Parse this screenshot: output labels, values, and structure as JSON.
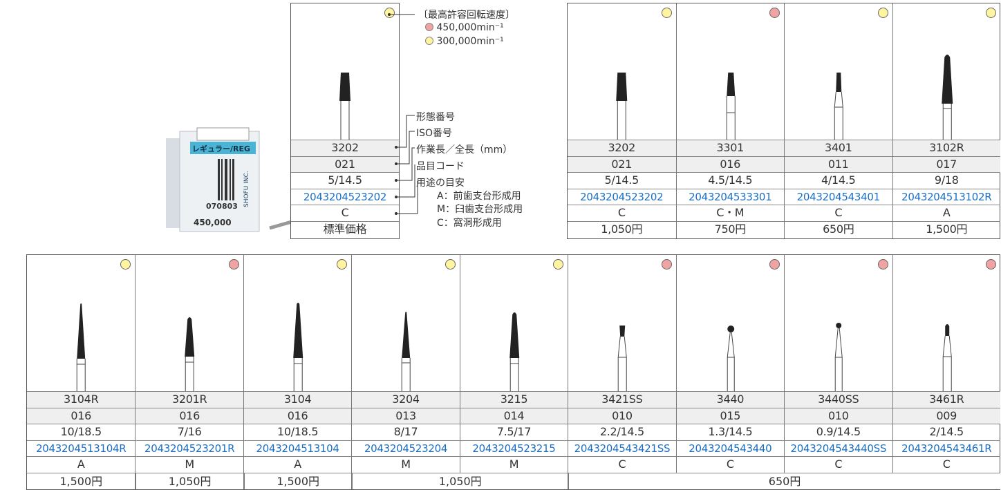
{
  "colors": {
    "speed_450k": "#f0a3a3",
    "speed_300k": "#fff4a0",
    "code_text": "#1a6fc4",
    "row_gray": "#efefef"
  },
  "product_box": {
    "label": "レギュラー/REG",
    "lot": "070803",
    "speed": "450,000",
    "brand": "SHOFU INC."
  },
  "legend": {
    "speed_title": "〔最高許容回転速度〕",
    "speed_450k": "450,000min⁻¹",
    "speed_300k": "300,000min⁻¹",
    "sample": {
      "speed": "300k",
      "shape_no": "3202",
      "iso": "021",
      "length": "5/14.5",
      "code": "2043204523202",
      "usage": "C",
      "price_label": "標準価格"
    },
    "labels": {
      "shape_no": "形態番号",
      "iso": "ISO番号",
      "length": "作業長／全長（mm）",
      "code": "品目コード",
      "usage": "用途の目安"
    },
    "usage_keys": [
      "A：前歯支台形成用",
      "M：臼歯支台形成用",
      "C：窩洞形成用"
    ]
  },
  "top_table": {
    "items": [
      {
        "speed": "300k",
        "shape_no": "3202",
        "iso": "021",
        "length": "5/14.5",
        "code": "2043204523202",
        "usage": "C",
        "price": "1,050円"
      },
      {
        "speed": "450k",
        "shape_no": "3301",
        "iso": "016",
        "length": "4.5/14.5",
        "code": "2043204533301",
        "usage": "C・M",
        "price": "750円"
      },
      {
        "speed": "300k",
        "shape_no": "3401",
        "iso": "011",
        "length": "4/14.5",
        "code": "2043204543401",
        "usage": "C",
        "price": "650円"
      },
      {
        "speed": "300k",
        "shape_no": "3102R",
        "iso": "017",
        "length": "9/18",
        "code": "2043204513102R",
        "usage": "A",
        "price": "1,500円"
      }
    ]
  },
  "bottom_table": {
    "items": [
      {
        "speed": "300k",
        "shape_no": "3104R",
        "iso": "016",
        "length": "10/18.5",
        "code": "2043204513104R",
        "usage": "A"
      },
      {
        "speed": "450k",
        "shape_no": "3201R",
        "iso": "016",
        "length": "7/16",
        "code": "2043204523201R",
        "usage": "M"
      },
      {
        "speed": "300k",
        "shape_no": "3104",
        "iso": "016",
        "length": "10/18.5",
        "code": "2043204513104",
        "usage": "A"
      },
      {
        "speed": "300k",
        "shape_no": "3204",
        "iso": "013",
        "length": "8/17",
        "code": "2043204523204",
        "usage": "M"
      },
      {
        "speed": "300k",
        "shape_no": "3215",
        "iso": "014",
        "length": "7.5/17",
        "code": "2043204523215",
        "usage": "M"
      },
      {
        "speed": "450k",
        "shape_no": "3421SS",
        "iso": "010",
        "length": "2.2/14.5",
        "code": "2043204543421SS",
        "usage": "C"
      },
      {
        "speed": "450k",
        "shape_no": "3440",
        "iso": "015",
        "length": "1.3/14.5",
        "code": "2043204543440",
        "usage": "C"
      },
      {
        "speed": "450k",
        "shape_no": "3440SS",
        "iso": "010",
        "length": "0.9/14.5",
        "code": "2043204543440SS",
        "usage": "C"
      },
      {
        "speed": "450k",
        "shape_no": "3461R",
        "iso": "009",
        "length": "2/14.5",
        "code": "2043204543461R",
        "usage": "C"
      }
    ],
    "prices": [
      {
        "from": 1,
        "to": 1,
        "price": "1,500円"
      },
      {
        "from": 2,
        "to": 2,
        "price": "1,050円"
      },
      {
        "from": 3,
        "to": 3,
        "price": "1,500円"
      },
      {
        "from": 4,
        "to": 5,
        "price": "1,050円"
      },
      {
        "from": 6,
        "to": 9,
        "price": "650円"
      }
    ]
  }
}
